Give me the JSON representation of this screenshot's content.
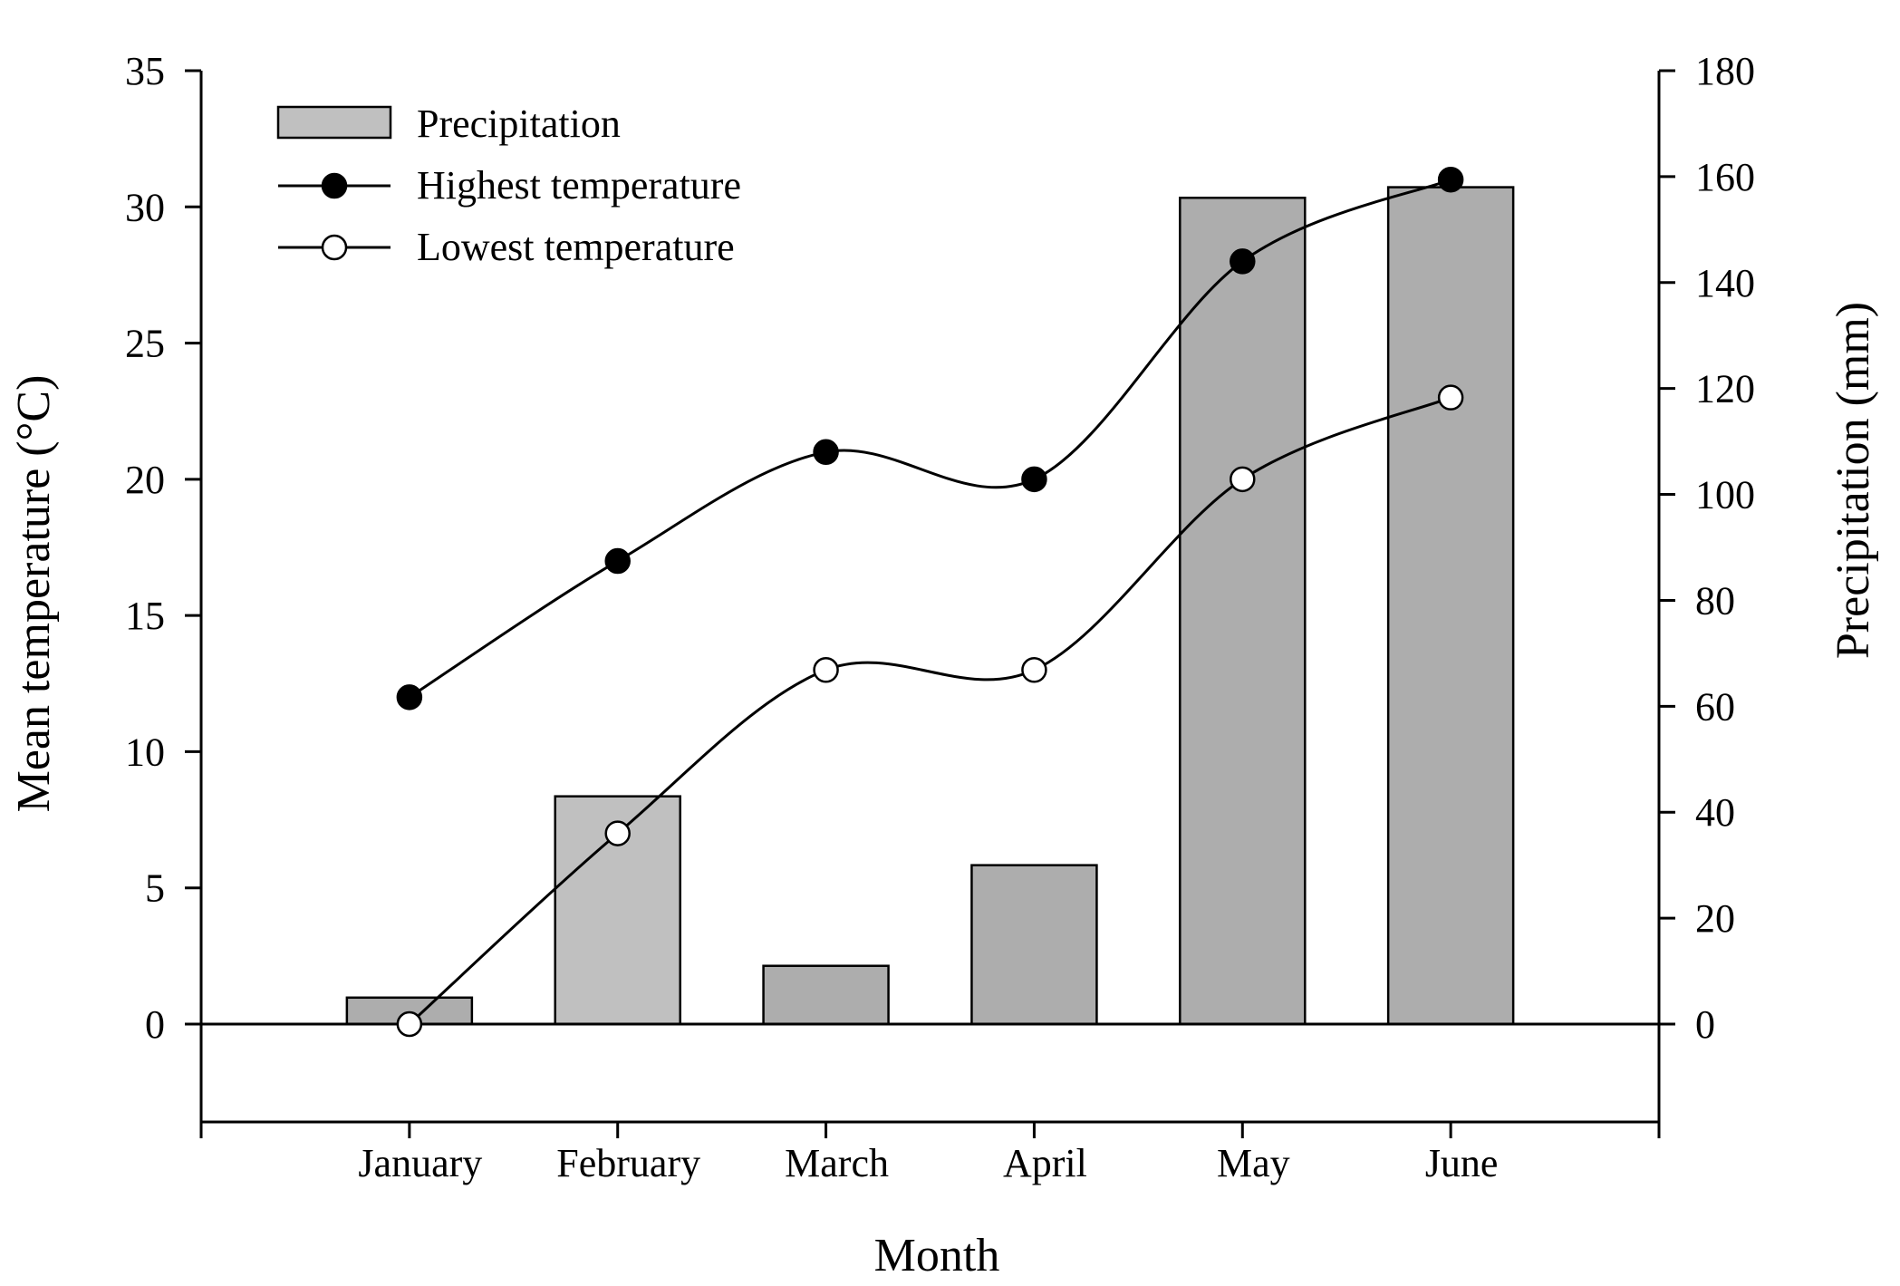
{
  "chart_data": {
    "type": "bar",
    "categories": [
      "January",
      "February",
      "March",
      "April",
      "May",
      "June"
    ],
    "xlabel": "Month",
    "ylabel": "Mean temperature (°C)",
    "y2label": "Precipitation (mm)",
    "ylim": [
      -5,
      35
    ],
    "y2lim": [
      0,
      180
    ],
    "yticks": [
      0,
      5,
      10,
      15,
      20,
      25,
      30,
      35
    ],
    "y2ticks": [
      0,
      20,
      40,
      60,
      80,
      100,
      120,
      140,
      160,
      180
    ],
    "legend_position": "top-left",
    "grid": false,
    "series": [
      {
        "name": "Precipitation",
        "kind": "bar",
        "axis": "right",
        "values": [
          5,
          43,
          11,
          30,
          156,
          158
        ],
        "colors": [
          "#adadad",
          "#c0c0c0",
          "#adadad",
          "#adadad",
          "#adadad",
          "#adadad"
        ],
        "legend_color": "#c0c0c0"
      },
      {
        "name": "Highest temperature",
        "kind": "line",
        "axis": "left",
        "marker": "filled-circle",
        "values": [
          12,
          17,
          21,
          20,
          28,
          31
        ]
      },
      {
        "name": "Lowest temperature",
        "kind": "line",
        "axis": "left",
        "marker": "open-circle",
        "values": [
          0,
          7,
          13,
          13,
          20,
          23
        ]
      }
    ]
  }
}
